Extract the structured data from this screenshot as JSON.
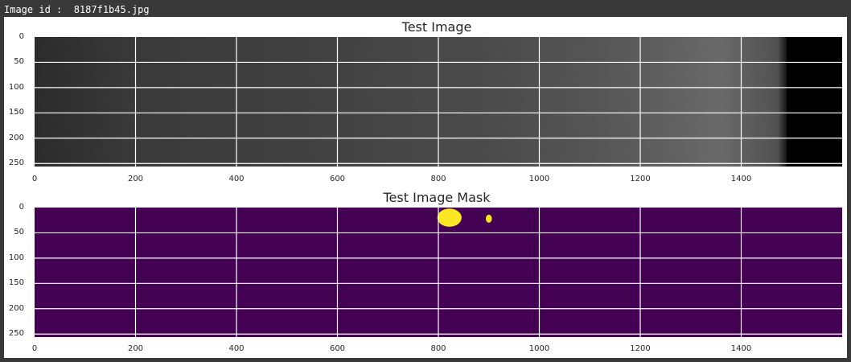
{
  "header": {
    "label": "Image id :  8187f1b45.jpg"
  },
  "colors": {
    "figure_background": "#ffffff",
    "gridline": "#ffffff",
    "mask_background": "#440154",
    "mask_defect": "#fde725"
  },
  "chart_data": [
    {
      "type": "image",
      "title": "Test Image",
      "xlim": [
        0,
        1600
      ],
      "ylim": [
        256,
        0
      ],
      "xticks": [
        0,
        200,
        400,
        600,
        800,
        1000,
        1200,
        1400
      ],
      "yticks": [
        0,
        50,
        100,
        150,
        200,
        250
      ],
      "grid": true,
      "colormap": "gray",
      "dark_band_start_x": 1490
    },
    {
      "type": "image",
      "title": "Test Image Mask",
      "xlim": [
        0,
        1600
      ],
      "ylim": [
        256,
        0
      ],
      "xticks": [
        0,
        200,
        400,
        600,
        800,
        1000,
        1200,
        1400
      ],
      "yticks": [
        0,
        50,
        100,
        150,
        200,
        250
      ],
      "grid": true,
      "colormap": "viridis",
      "regions": [
        {
          "label": "defect",
          "center_x": 822,
          "center_y": 20,
          "width": 48,
          "height": 36
        },
        {
          "label": "defect",
          "center_x": 900,
          "center_y": 22,
          "width": 12,
          "height": 16
        }
      ]
    }
  ]
}
